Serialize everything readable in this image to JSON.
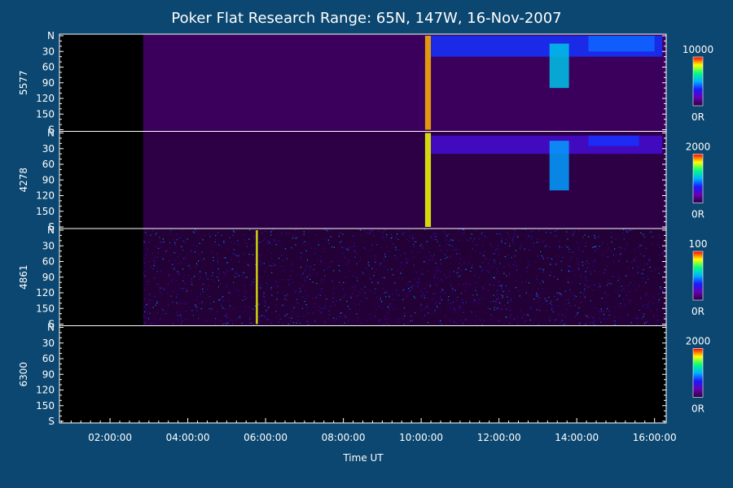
{
  "chart_data": {
    "type": "heatmap",
    "title": "Poker Flat Research Range: 65N, 147W, 16-Nov-2007",
    "xlabel": "Time UT",
    "x_ticks": [
      {
        "label": "02:00:00",
        "t": 2
      },
      {
        "label": "04:00:00",
        "t": 4
      },
      {
        "label": "06:00:00",
        "t": 6
      },
      {
        "label": "08:00:00",
        "t": 8
      },
      {
        "label": "10:00:00",
        "t": 10
      },
      {
        "label": "12:00:00",
        "t": 12
      },
      {
        "label": "14:00:00",
        "t": 14
      },
      {
        "label": "16:00:00",
        "t": 16
      }
    ],
    "x_range_hours": [
      0.7,
      16.3
    ],
    "y_tick_labels": [
      "N",
      "30",
      "60",
      "90",
      "120",
      "150",
      "S"
    ],
    "y_tick_values": [
      0,
      30,
      60,
      90,
      120,
      150,
      180
    ],
    "y_range": [
      0,
      180
    ],
    "colormap": [
      "#000000",
      "#2a003f",
      "#6a00b0",
      "#1a1aff",
      "#00b4ff",
      "#00ff80",
      "#ffff00",
      "#ff0000"
    ],
    "panels": [
      {
        "name": "5577",
        "cbar_max": "10000",
        "cbar_min": "0R",
        "data_start_hour": 2.85,
        "background_level": 0.18,
        "features": [
          {
            "start_hour": 10.1,
            "end_hour": 10.25,
            "lat_from": 0,
            "lat_to": 180,
            "level": 0.9
          },
          {
            "start_hour": 10.25,
            "end_hour": 16.2,
            "lat_from": 0,
            "lat_to": 40,
            "level": 0.45
          },
          {
            "start_hour": 13.3,
            "end_hour": 13.8,
            "lat_from": 15,
            "lat_to": 100,
            "level": 0.6
          },
          {
            "start_hour": 14.3,
            "end_hour": 16.0,
            "lat_from": 0,
            "lat_to": 30,
            "level": 0.5
          }
        ]
      },
      {
        "name": "4278",
        "cbar_max": "2000",
        "cbar_min": "0R",
        "data_start_hour": 2.85,
        "background_level": 0.15,
        "features": [
          {
            "start_hour": 10.1,
            "end_hour": 10.25,
            "lat_from": 0,
            "lat_to": 180,
            "level": 0.85
          },
          {
            "start_hour": 10.25,
            "end_hour": 16.2,
            "lat_from": 5,
            "lat_to": 40,
            "level": 0.35
          },
          {
            "start_hour": 13.3,
            "end_hour": 13.8,
            "lat_from": 15,
            "lat_to": 110,
            "level": 0.55
          },
          {
            "start_hour": 14.3,
            "end_hour": 15.6,
            "lat_from": 5,
            "lat_to": 25,
            "level": 0.45
          }
        ]
      },
      {
        "name": "4861",
        "cbar_max": "100",
        "cbar_min": "0R",
        "data_start_hour": 2.85,
        "background_level": 0.12,
        "noise": true,
        "features": [
          {
            "start_hour": 5.75,
            "end_hour": 5.8,
            "lat_from": 0,
            "lat_to": 180,
            "level": 0.85
          }
        ]
      },
      {
        "name": "6300",
        "cbar_max": "2000",
        "cbar_min": "0R",
        "data_start_hour": null,
        "background_level": 0,
        "features": []
      }
    ]
  }
}
